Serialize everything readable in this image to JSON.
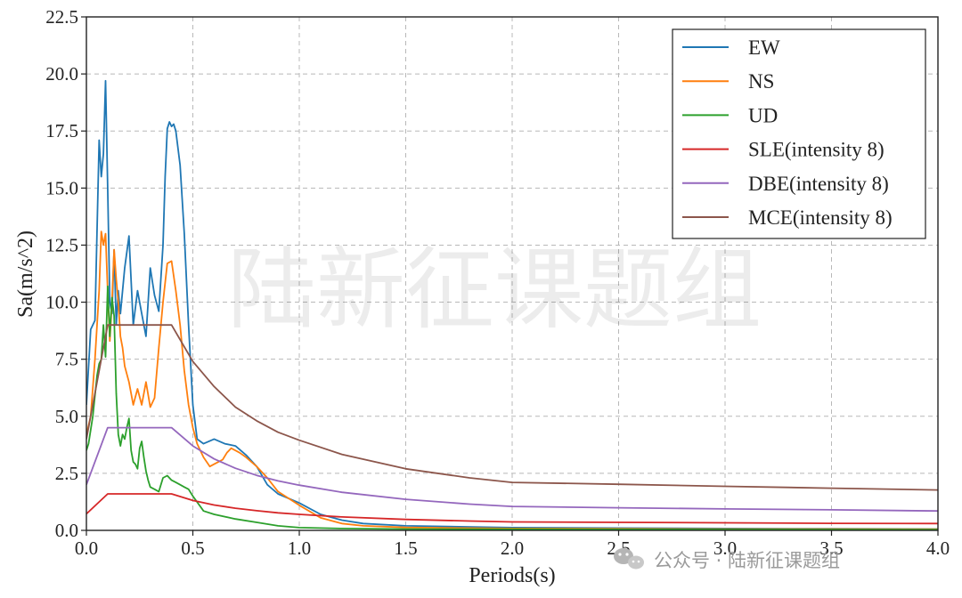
{
  "chart_data": {
    "type": "line",
    "xlabel": "Periods(s)",
    "ylabel": "Sa(m/s^2)",
    "xlim": [
      0,
      4.0
    ],
    "ylim": [
      0,
      22.5
    ],
    "xticks": [
      "0.0",
      "0.5",
      "1.0",
      "1.5",
      "2.0",
      "2.5",
      "3.0",
      "3.5",
      "4.0"
    ],
    "yticks": [
      "0.0",
      "2.5",
      "5.0",
      "7.5",
      "10.0",
      "12.5",
      "15.0",
      "17.5",
      "20.0",
      "22.5"
    ],
    "grid": true,
    "legend_position": "top-right",
    "series": [
      {
        "name": "EW",
        "color": "#1f77b4",
        "x": [
          0,
          0.02,
          0.04,
          0.06,
          0.07,
          0.08,
          0.09,
          0.1,
          0.11,
          0.12,
          0.13,
          0.14,
          0.15,
          0.16,
          0.18,
          0.2,
          0.22,
          0.24,
          0.26,
          0.28,
          0.3,
          0.32,
          0.34,
          0.36,
          0.37,
          0.38,
          0.39,
          0.4,
          0.41,
          0.42,
          0.44,
          0.46,
          0.48,
          0.5,
          0.52,
          0.55,
          0.6,
          0.65,
          0.7,
          0.75,
          0.8,
          0.85,
          0.9,
          1.0,
          1.1,
          1.2,
          1.3,
          1.5,
          2.0,
          2.5,
          3.0,
          3.5,
          4.0
        ],
        "y": [
          5.5,
          8.8,
          9.2,
          17.1,
          15.5,
          16.5,
          19.7,
          15.0,
          10.0,
          9.5,
          12.3,
          9.0,
          10.5,
          9.5,
          11.5,
          12.9,
          9.0,
          10.5,
          9.5,
          8.5,
          11.5,
          10.3,
          9.6,
          12.5,
          15.5,
          17.6,
          17.9,
          17.7,
          17.8,
          17.5,
          16.0,
          13.0,
          9.0,
          5.5,
          4.0,
          3.8,
          4.0,
          3.8,
          3.7,
          3.3,
          2.8,
          2.0,
          1.6,
          1.2,
          0.7,
          0.45,
          0.3,
          0.2,
          0.12,
          0.1,
          0.08,
          0.07,
          0.06
        ]
      },
      {
        "name": "NS",
        "color": "#ff7f0e",
        "x": [
          0,
          0.02,
          0.04,
          0.06,
          0.07,
          0.08,
          0.09,
          0.1,
          0.11,
          0.12,
          0.13,
          0.14,
          0.15,
          0.16,
          0.17,
          0.18,
          0.2,
          0.22,
          0.24,
          0.26,
          0.28,
          0.3,
          0.32,
          0.34,
          0.36,
          0.38,
          0.4,
          0.42,
          0.44,
          0.46,
          0.48,
          0.5,
          0.52,
          0.55,
          0.58,
          0.6,
          0.62,
          0.64,
          0.66,
          0.68,
          0.7,
          0.72,
          0.75,
          0.8,
          0.85,
          0.9,
          1.0,
          1.1,
          1.2,
          1.3,
          1.5,
          2.0,
          2.5,
          3.0,
          3.5,
          4.0
        ],
        "y": [
          4.2,
          5.0,
          7.5,
          10.5,
          13.1,
          12.5,
          13.0,
          10.5,
          8.3,
          10.0,
          12.3,
          11.0,
          10.0,
          8.5,
          8.0,
          7.2,
          6.5,
          5.5,
          6.2,
          5.5,
          6.5,
          5.4,
          5.8,
          8.0,
          10.0,
          11.7,
          11.8,
          10.5,
          9.0,
          7.0,
          5.5,
          4.5,
          3.8,
          3.2,
          2.8,
          2.9,
          3.0,
          3.1,
          3.4,
          3.6,
          3.5,
          3.4,
          3.2,
          2.8,
          2.3,
          1.7,
          1.1,
          0.55,
          0.3,
          0.2,
          0.13,
          0.08,
          0.07,
          0.06,
          0.06,
          0.05
        ]
      },
      {
        "name": "UD",
        "color": "#2ca02c",
        "x": [
          0,
          0.01,
          0.03,
          0.05,
          0.06,
          0.07,
          0.08,
          0.09,
          0.1,
          0.11,
          0.12,
          0.13,
          0.14,
          0.15,
          0.16,
          0.17,
          0.18,
          0.19,
          0.2,
          0.21,
          0.22,
          0.23,
          0.24,
          0.25,
          0.26,
          0.27,
          0.28,
          0.29,
          0.3,
          0.32,
          0.34,
          0.36,
          0.38,
          0.4,
          0.42,
          0.44,
          0.46,
          0.48,
          0.5,
          0.55,
          0.6,
          0.7,
          0.8,
          0.9,
          1.0,
          1.2,
          1.5,
          2.0,
          3.0,
          4.0
        ],
        "y": [
          3.5,
          3.8,
          5.0,
          6.8,
          7.3,
          7.5,
          9.0,
          7.6,
          10.7,
          8.5,
          10.2,
          9.4,
          6.0,
          4.2,
          3.7,
          4.2,
          4.0,
          4.5,
          4.9,
          3.5,
          3.0,
          2.9,
          2.7,
          3.6,
          3.9,
          3.2,
          2.6,
          2.2,
          1.9,
          1.8,
          1.7,
          2.3,
          2.4,
          2.2,
          2.1,
          2.0,
          1.9,
          1.8,
          1.5,
          0.85,
          0.7,
          0.5,
          0.35,
          0.2,
          0.12,
          0.08,
          0.06,
          0.05,
          0.04,
          0.03
        ]
      },
      {
        "name": "SLE(intensity 8)",
        "color": "#d62728",
        "x": [
          0,
          0.1,
          0.4,
          0.5,
          0.6,
          0.7,
          0.8,
          0.9,
          1.0,
          1.2,
          1.5,
          1.8,
          2.0,
          2.5,
          3.0,
          3.5,
          4.0
        ],
        "y": [
          0.72,
          1.6,
          1.6,
          1.31,
          1.11,
          0.97,
          0.86,
          0.77,
          0.7,
          0.59,
          0.48,
          0.41,
          0.37,
          0.35,
          0.33,
          0.31,
          0.3
        ]
      },
      {
        "name": "DBE(intensity 8)",
        "color": "#9467bd",
        "x": [
          0,
          0.1,
          0.4,
          0.5,
          0.6,
          0.7,
          0.8,
          0.9,
          1.0,
          1.2,
          1.5,
          1.8,
          2.0,
          2.5,
          3.0,
          3.5,
          4.0
        ],
        "y": [
          2.0,
          4.5,
          4.5,
          3.7,
          3.13,
          2.72,
          2.41,
          2.17,
          1.98,
          1.67,
          1.36,
          1.15,
          1.05,
          0.99,
          0.94,
          0.9,
          0.85
        ]
      },
      {
        "name": "MCE(intensity 8)",
        "color": "#8c564b",
        "x": [
          0,
          0.1,
          0.4,
          0.5,
          0.6,
          0.7,
          0.8,
          0.9,
          1.0,
          1.2,
          1.5,
          1.8,
          2.0,
          2.5,
          3.0,
          3.5,
          4.0
        ],
        "y": [
          4.0,
          9.0,
          9.0,
          7.4,
          6.3,
          5.4,
          4.8,
          4.3,
          3.95,
          3.33,
          2.7,
          2.3,
          2.1,
          2.02,
          1.93,
          1.85,
          1.77
        ]
      }
    ]
  },
  "watermark": "陆新征课题组",
  "footer": {
    "icon": "wechat-icon",
    "text": "公众号 · 陆新征课题组"
  }
}
